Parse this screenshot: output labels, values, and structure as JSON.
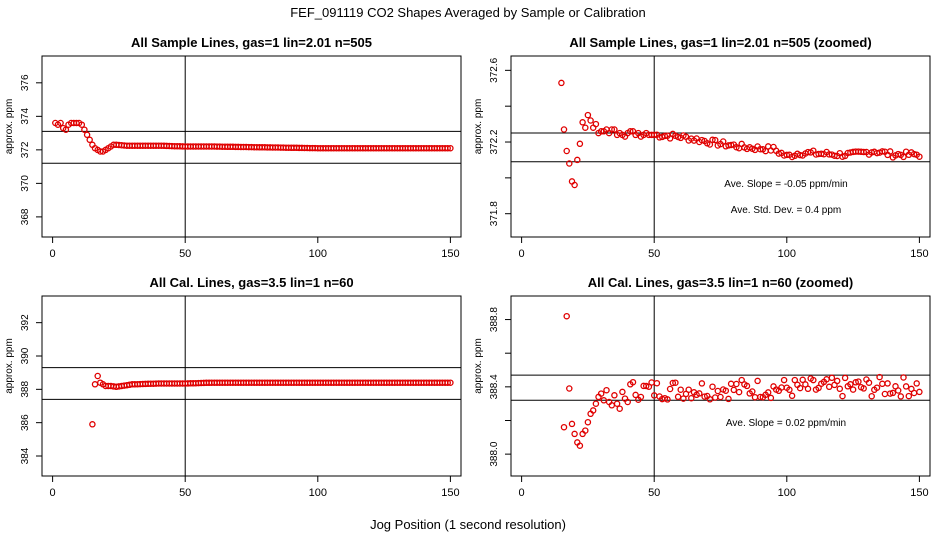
{
  "figure": {
    "title": "FEF_091119  CO2 Shapes Averaged by Sample or Calibration",
    "xlabel": "Jog Position (1 second resolution)",
    "colors": {
      "points": "#e00000",
      "lines": "#000000"
    }
  },
  "chart_data": [
    {
      "type": "scatter",
      "title": "All Sample Lines, gas=1 lin=2.01 n=505",
      "ylabel": "approx. ppm",
      "xlim": [
        -4,
        154
      ],
      "ylim": [
        366.8,
        377.6
      ],
      "xticks": [
        0,
        50,
        100,
        150
      ],
      "yticks": [
        368,
        370,
        372,
        374,
        376
      ],
      "ytick_labels": [
        "368",
        "370",
        "372",
        "374",
        "376"
      ],
      "vline": 50,
      "hlines": [
        373.1,
        371.2
      ],
      "annotations": [],
      "profile": [
        [
          1,
          373.6
        ],
        [
          2,
          373.5
        ],
        [
          3,
          373.6
        ],
        [
          4,
          373.3
        ],
        [
          5,
          373.2
        ],
        [
          6,
          373.5
        ],
        [
          7,
          373.6
        ],
        [
          8,
          373.6
        ],
        [
          9,
          373.6
        ],
        [
          10,
          373.6
        ],
        [
          11,
          373.5
        ],
        [
          12,
          373.2
        ],
        [
          13,
          372.9
        ],
        [
          14,
          372.6
        ],
        [
          15,
          372.3
        ],
        [
          16,
          372.1
        ],
        [
          17,
          372.0
        ],
        [
          18,
          371.9
        ],
        [
          19,
          371.9
        ],
        [
          20,
          372.0
        ],
        [
          21,
          372.1
        ],
        [
          22,
          372.2
        ],
        [
          23,
          372.3
        ],
        [
          24,
          372.3
        ],
        [
          28,
          372.25
        ],
        [
          40,
          372.25
        ],
        [
          50,
          372.2
        ],
        [
          60,
          372.2
        ],
        [
          80,
          372.15
        ],
        [
          100,
          372.1
        ],
        [
          120,
          372.1
        ],
        [
          150,
          372.1
        ]
      ]
    },
    {
      "type": "scatter",
      "title": "All Sample Lines, gas=1 lin=2.01 n=505 (zoomed)",
      "ylabel": "approx. ppm",
      "xlim": [
        -4,
        154
      ],
      "ylim": [
        371.67,
        372.68
      ],
      "xticks": [
        0,
        50,
        100,
        150
      ],
      "yticks": [
        371.8,
        372.0,
        372.2,
        372.4,
        372.6
      ],
      "ytick_labels": [
        "371.8",
        "",
        "372.2",
        "",
        "372.6"
      ],
      "vline": 50,
      "hlines": [
        372.25,
        372.09
      ],
      "annotations": [
        "Ave. Slope =  -0.05  ppm/min",
        "Ave. Std. Dev. =  0.4  ppm"
      ],
      "points": [
        [
          15,
          372.53
        ],
        [
          16,
          372.27
        ],
        [
          17,
          372.15
        ],
        [
          18,
          372.08
        ],
        [
          19,
          371.98
        ],
        [
          20,
          371.96
        ],
        [
          21,
          372.1
        ],
        [
          22,
          372.19
        ],
        [
          23,
          372.31
        ],
        [
          24,
          372.28
        ],
        [
          25,
          372.35
        ],
        [
          26,
          372.32
        ],
        [
          27,
          372.28
        ],
        [
          28,
          372.3
        ],
        [
          29,
          372.25
        ],
        [
          30,
          372.26
        ],
        [
          31,
          372.26
        ],
        [
          32,
          372.27
        ],
        [
          33,
          372.25
        ],
        [
          34,
          372.27
        ],
        [
          35,
          372.27
        ],
        [
          36,
          372.24
        ],
        [
          37,
          372.25
        ],
        [
          38,
          372.24
        ],
        [
          39,
          372.23
        ],
        [
          40,
          372.25
        ],
        [
          41,
          372.26
        ],
        [
          42,
          372.26
        ],
        [
          43,
          372.24
        ],
        [
          44,
          372.25
        ],
        [
          45,
          372.23
        ],
        [
          46,
          372.24
        ],
        [
          47,
          372.25
        ],
        [
          48,
          372.24
        ],
        [
          49,
          372.24
        ]
      ],
      "trend": [
        [
          50,
          372.24
        ],
        [
          60,
          372.23
        ],
        [
          75,
          372.19
        ],
        [
          85,
          372.17
        ],
        [
          95,
          372.16
        ],
        [
          100,
          372.12
        ],
        [
          105,
          372.14
        ],
        [
          120,
          372.13
        ],
        [
          125,
          372.13
        ],
        [
          133,
          372.15
        ],
        [
          140,
          372.13
        ],
        [
          150,
          372.13
        ]
      ]
    },
    {
      "type": "scatter",
      "title": "All Cal. Lines, gas=3.5 lin=1 n=60",
      "ylabel": "approx. ppm",
      "xlim": [
        -4,
        154
      ],
      "ylim": [
        382.8,
        393.6
      ],
      "xticks": [
        0,
        50,
        100,
        150
      ],
      "yticks": [
        384,
        386,
        388,
        390,
        392
      ],
      "ytick_labels": [
        "384",
        "386",
        "388",
        "390",
        "392"
      ],
      "vline": 50,
      "hlines": [
        389.3,
        387.4
      ],
      "annotations": [],
      "points": [
        [
          15,
          385.9
        ],
        [
          16,
          388.3
        ],
        [
          17,
          388.8
        ],
        [
          18,
          388.4
        ]
      ],
      "profile": [
        [
          19,
          388.3
        ],
        [
          20,
          388.2
        ],
        [
          22,
          388.2
        ],
        [
          24,
          388.15
        ],
        [
          26,
          388.2
        ],
        [
          30,
          388.3
        ],
        [
          40,
          388.35
        ],
        [
          50,
          388.35
        ],
        [
          60,
          388.4
        ],
        [
          80,
          388.4
        ],
        [
          100,
          388.4
        ],
        [
          120,
          388.4
        ],
        [
          150,
          388.4
        ]
      ]
    },
    {
      "type": "scatter",
      "title": "All Cal. Lines, gas=3.5 lin=1 n=60 (zoomed)",
      "ylabel": "approx. ppm",
      "xlim": [
        -4,
        154
      ],
      "ylim": [
        387.87,
        388.94
      ],
      "xticks": [
        0,
        50,
        100,
        150
      ],
      "yticks": [
        388.0,
        388.2,
        388.4,
        388.6,
        388.8
      ],
      "ytick_labels": [
        "388.0",
        "",
        "388.4",
        "",
        "388.8"
      ],
      "vline": 50,
      "hlines": [
        388.47,
        388.32
      ],
      "annotations": [
        "Ave. Slope =  0.02  ppm/min"
      ],
      "points": [
        [
          16,
          388.16
        ],
        [
          17,
          388.82
        ],
        [
          18,
          388.39
        ],
        [
          19,
          388.18
        ],
        [
          20,
          388.12
        ],
        [
          21,
          388.07
        ],
        [
          22,
          388.05
        ],
        [
          23,
          388.12
        ],
        [
          24,
          388.14
        ],
        [
          25,
          388.19
        ],
        [
          26,
          388.24
        ],
        [
          27,
          388.26
        ],
        [
          28,
          388.3
        ],
        [
          29,
          388.34
        ],
        [
          30,
          388.36
        ],
        [
          31,
          388.32
        ],
        [
          32,
          388.38
        ],
        [
          33,
          388.31
        ],
        [
          34,
          388.29
        ],
        [
          35,
          388.35
        ],
        [
          36,
          388.3
        ],
        [
          37,
          388.27
        ],
        [
          38,
          388.37
        ],
        [
          39,
          388.33
        ],
        [
          40,
          388.31
        ]
      ]
    }
  ]
}
